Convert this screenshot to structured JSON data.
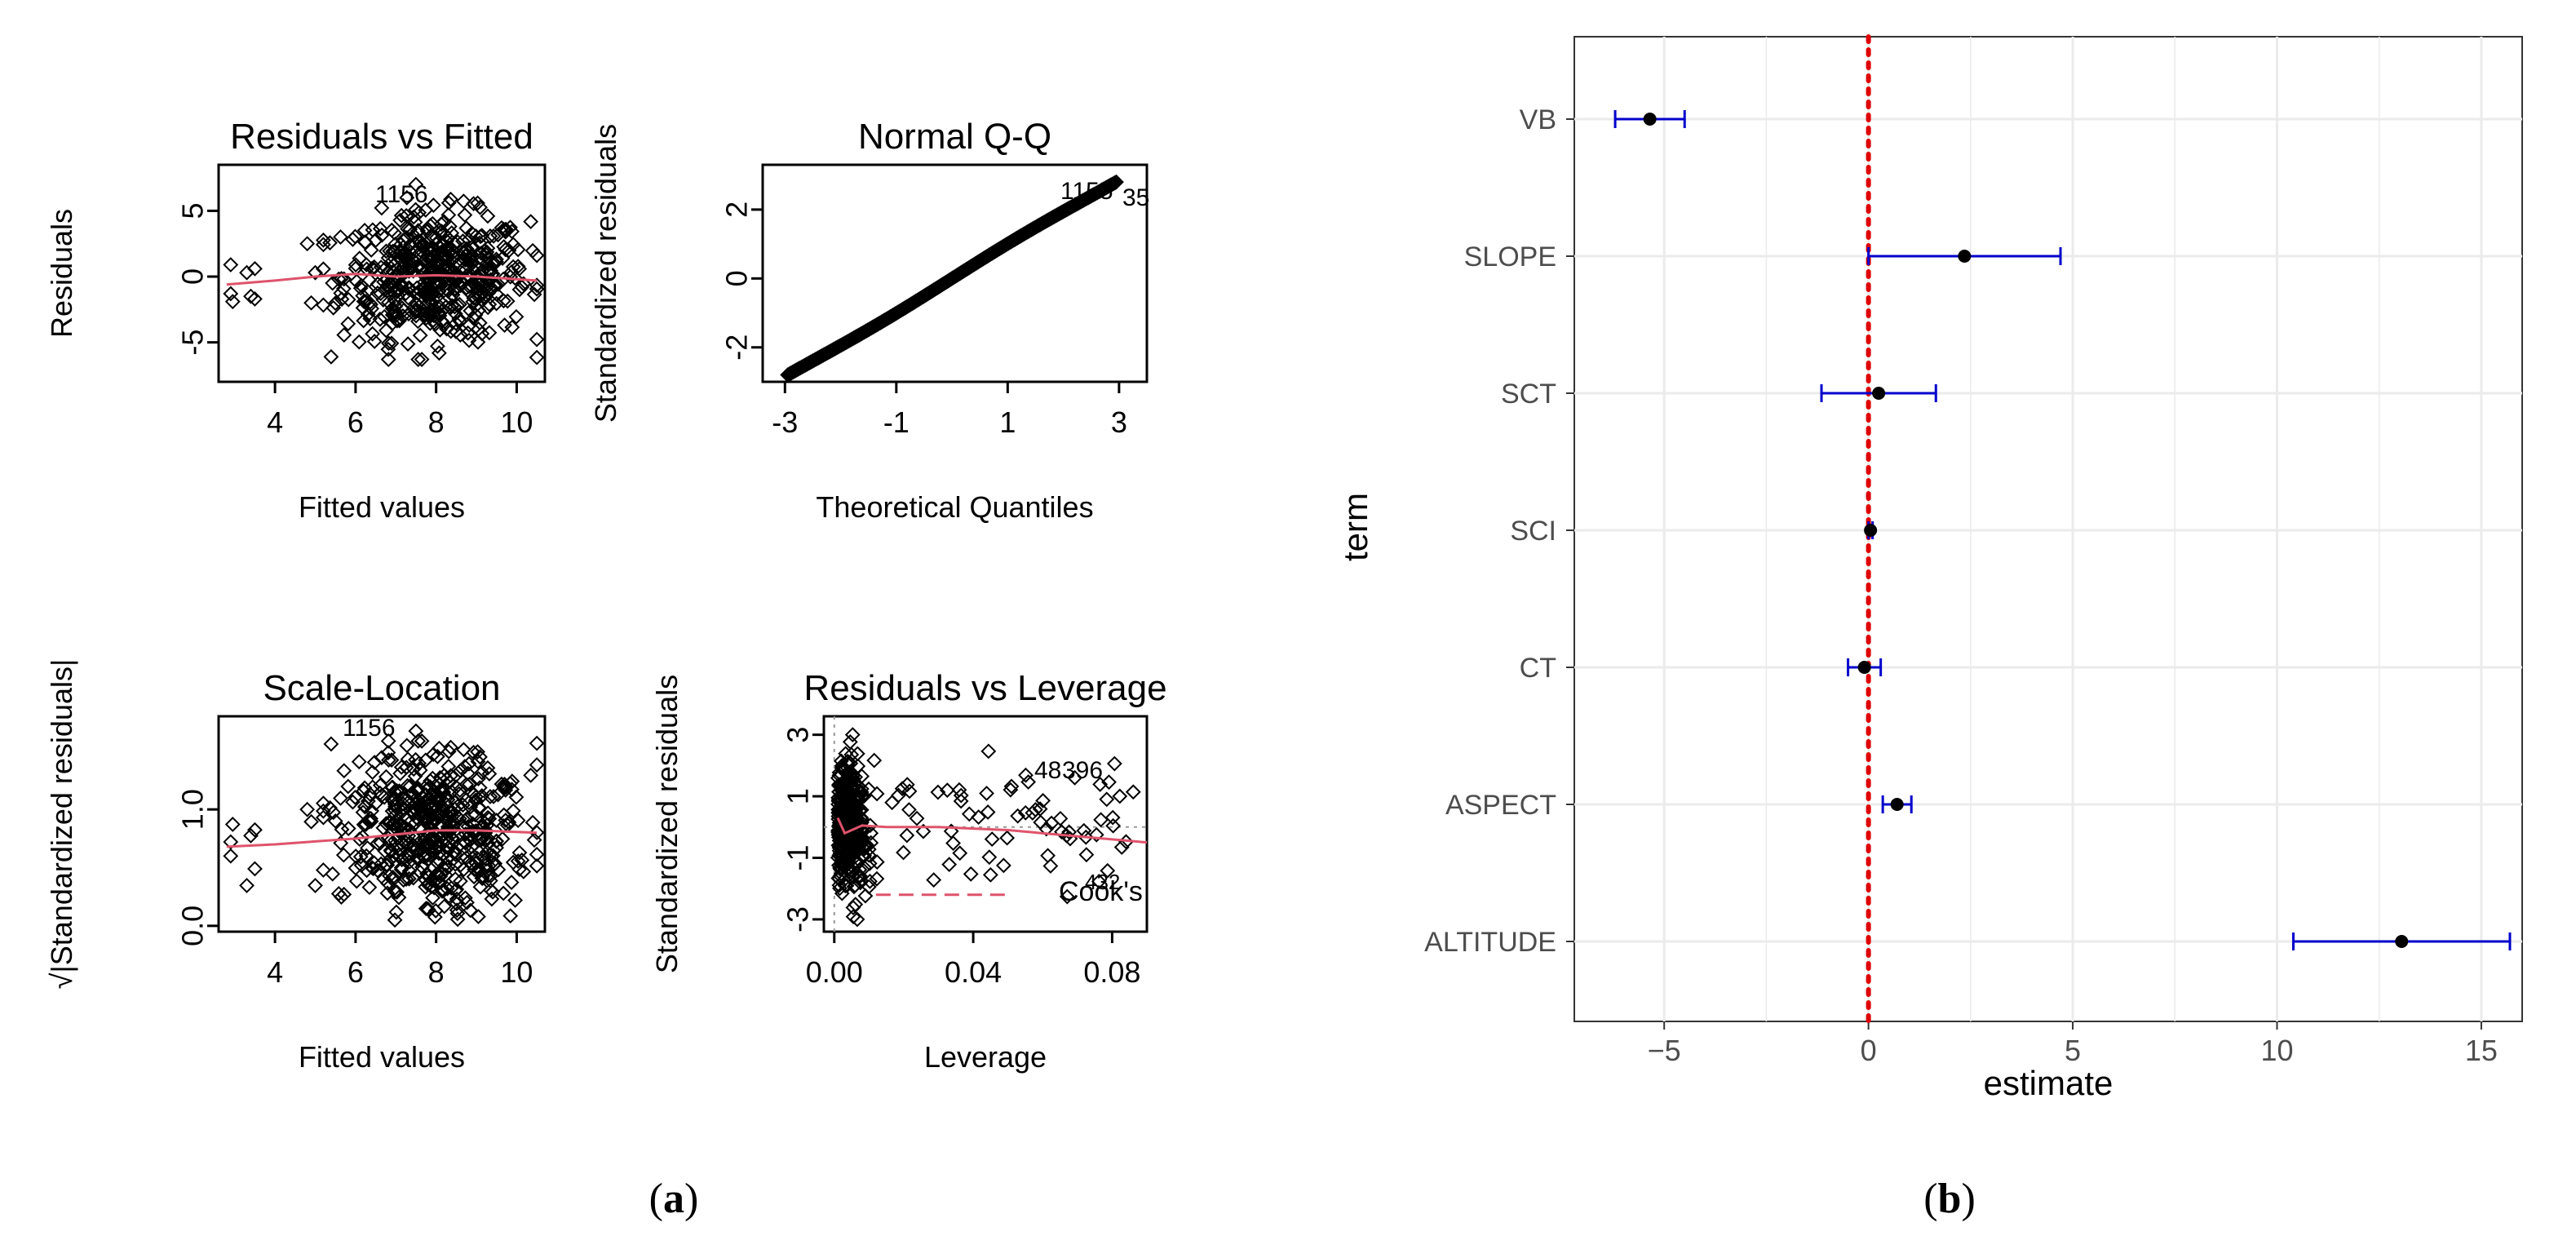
{
  "captions": {
    "a": "(a)",
    "b": "(b)",
    "a_letter": "a",
    "b_letter": "b"
  },
  "chart_data": [
    {
      "type": "scatter",
      "id": "residuals-vs-fitted",
      "title": "Residuals vs Fitted",
      "xlabel": "Fitted values",
      "ylabel": "Residuals",
      "xlim": [
        2.6,
        10.7
      ],
      "ylim": [
        -8,
        8.5
      ],
      "xticks": [
        4,
        6,
        8,
        10
      ],
      "xtick_labels": [
        "4",
        "6",
        "8",
        "10"
      ],
      "yticks": [
        -5,
        0,
        5
      ],
      "ytick_labels": [
        "-5",
        "0",
        "5"
      ],
      "smoother": [
        [
          2.8,
          -0.6
        ],
        [
          4,
          -0.3
        ],
        [
          5,
          0.0
        ],
        [
          6,
          0.2
        ],
        [
          7,
          0.0
        ],
        [
          8,
          0.1
        ],
        [
          9,
          0.0
        ],
        [
          10,
          -0.2
        ],
        [
          10.5,
          -0.3
        ]
      ],
      "annotations": [
        "1156"
      ]
    },
    {
      "type": "scatter",
      "id": "normal-qq",
      "title": "Normal Q-Q",
      "xlabel": "Theoretical Quantiles",
      "ylabel": "Standardized residuals",
      "xlim": [
        -3.4,
        3.5
      ],
      "ylim": [
        -3.0,
        3.3
      ],
      "xticks": [
        -3,
        -1,
        1,
        3
      ],
      "xtick_labels": [
        "-3",
        "-1",
        "1",
        "3"
      ],
      "yticks": [
        -2,
        0,
        2
      ],
      "ytick_labels": [
        "-2",
        "0",
        "2"
      ],
      "annotations": [
        "1155",
        "35"
      ]
    },
    {
      "type": "scatter",
      "id": "scale-location",
      "title": "Scale-Location",
      "xlabel": "Fitted values",
      "ylabel": "√|Standardized residuals|",
      "xlim": [
        2.6,
        10.7
      ],
      "ylim": [
        -0.05,
        1.8
      ],
      "xticks": [
        4,
        6,
        8,
        10
      ],
      "xtick_labels": [
        "4",
        "6",
        "8",
        "10"
      ],
      "yticks": [
        0.0,
        1.0
      ],
      "ytick_labels": [
        "0.0",
        "1.0"
      ],
      "smoother": [
        [
          2.8,
          0.68
        ],
        [
          4,
          0.7
        ],
        [
          6,
          0.75
        ],
        [
          8,
          0.82
        ],
        [
          9,
          0.82
        ],
        [
          10.5,
          0.8
        ]
      ],
      "annotations": [
        "1156"
      ]
    },
    {
      "type": "scatter",
      "id": "residuals-vs-leverage",
      "title": "Residuals vs Leverage",
      "xlabel": "Leverage",
      "ylabel": "Standardized residuals",
      "xlim": [
        -0.003,
        0.09
      ],
      "ylim": [
        -3.4,
        3.6
      ],
      "xticks": [
        0.0,
        0.04,
        0.08
      ],
      "xtick_labels": [
        "0.00",
        "0.04",
        "0.08"
      ],
      "yticks": [
        -3,
        -1,
        1,
        3
      ],
      "ytick_labels": [
        "-3",
        "-1",
        "1",
        "3"
      ],
      "smoother": [
        [
          0.001,
          0.3
        ],
        [
          0.003,
          -0.2
        ],
        [
          0.008,
          0.05
        ],
        [
          0.015,
          0.0
        ],
        [
          0.03,
          0.0
        ],
        [
          0.05,
          -0.1
        ],
        [
          0.07,
          -0.3
        ],
        [
          0.09,
          -0.5
        ]
      ],
      "annotations": [
        "48",
        "396",
        "432"
      ],
      "cooks_label": "Cook's"
    },
    {
      "type": "errorbar",
      "id": "coefficient-plot",
      "xlabel": "estimate",
      "ylabel": "term",
      "xlim": [
        -7.2,
        16.0
      ],
      "xticks": [
        -5,
        0,
        5,
        10,
        15
      ],
      "xtick_labels": [
        "−5",
        "0",
        "5",
        "10",
        "15"
      ],
      "reference_line": 0,
      "terms": [
        "VB",
        "SLOPE",
        "SCT",
        "SCI",
        "CT",
        "ASPECT",
        "ALTITUDE"
      ],
      "estimates": [
        -5.35,
        2.35,
        0.25,
        0.05,
        -0.1,
        0.7,
        13.05
      ],
      "lower": [
        -6.2,
        0.0,
        -1.15,
        0.0,
        -0.5,
        0.35,
        10.4
      ],
      "upper": [
        -4.5,
        4.7,
        1.65,
        0.1,
        0.3,
        1.05,
        15.7
      ],
      "colors": {
        "errorbar": "#0000cc",
        "reference": "#e00000",
        "point": "#000000",
        "grid": "#ebebeb"
      }
    }
  ]
}
